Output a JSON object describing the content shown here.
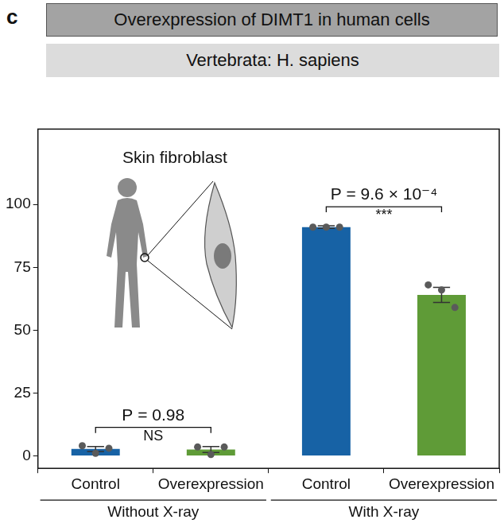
{
  "panel_label": "c",
  "header": {
    "title": "Overexpression of DIMT1 in human cells",
    "subtitle": "Vertebrata: H. sapiens"
  },
  "chart_data": {
    "type": "bar",
    "categories": [
      "Control",
      "Overexpression",
      "Control",
      "Overexpression"
    ],
    "values": [
      2.7,
      2.5,
      91,
      64
    ],
    "errors": [
      1.0,
      1.2,
      0.5,
      3.0
    ],
    "points": [
      [
        4,
        1,
        3
      ],
      [
        3.5,
        0.5,
        3.5
      ],
      [
        91,
        91,
        91
      ],
      [
        68,
        66,
        59
      ]
    ],
    "colors": [
      "#1762a5",
      "#5f9b37",
      "#1762a5",
      "#5f9b37"
    ],
    "ylim": [
      -5,
      130
    ],
    "yticks": [
      0,
      25,
      50,
      75,
      100
    ],
    "grid": false,
    "groups": [
      {
        "label": "Without X-ray",
        "categories": [
          0,
          1
        ]
      },
      {
        "label": "With X-ray",
        "categories": [
          2,
          3
        ]
      }
    ],
    "comparisons": [
      {
        "between": [
          0,
          1
        ],
        "p_label": "P = 0.98",
        "significance": "NS"
      },
      {
        "between": [
          2,
          3
        ],
        "p_label": "P = 9.6 × 10⁻⁴",
        "significance": "***"
      }
    ],
    "annotations": [
      "Skin fibroblast"
    ]
  }
}
